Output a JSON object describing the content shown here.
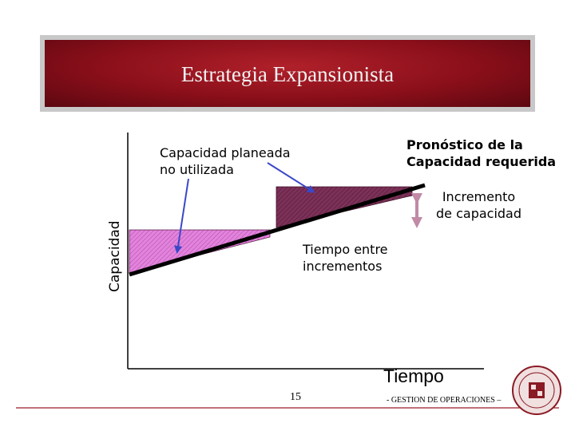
{
  "title": "Estrategia Expansionista",
  "labels": {
    "unused": [
      "Capacidad planeada",
      "no utilizada"
    ],
    "forecast": [
      "Pronóstico de la",
      "Capacidad requerida"
    ],
    "increment": [
      "Incremento",
      "de capacidad"
    ],
    "time_between": [
      "Tiempo entre",
      "incrementos"
    ]
  },
  "axes": {
    "y": "Capacidad",
    "x": "Tiempo"
  },
  "footer": {
    "page": "15",
    "course": "- GESTION DE OPERACIONES –"
  },
  "colors": {
    "title_bg": "#8a0f1a",
    "step_low": "#d65fd0",
    "step_high": "#6a2848",
    "arrow": "#3b48c8",
    "increment_arrow": "#c18aa7"
  },
  "icons": {
    "logo": "university-seal-icon"
  }
}
